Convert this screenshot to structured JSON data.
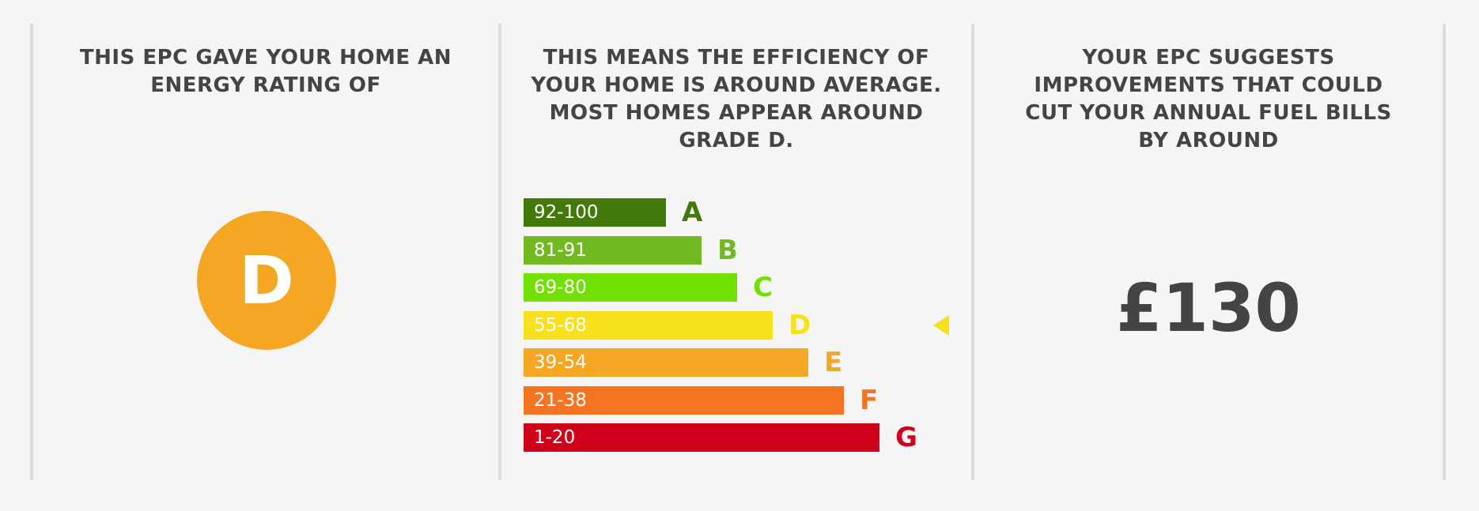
{
  "rating_panel": {
    "heading": "THIS EPC GAVE YOUR HOME AN ENERGY RATING OF",
    "rating": "D",
    "rating_color": "#f5a623"
  },
  "efficiency_panel": {
    "heading": "THIS MEANS THE EFFICIENCY OF YOUR HOME IS AROUND AVERAGE. MOST HOMES APPEAR AROUND GRADE D.",
    "current_band": "D",
    "bands": [
      {
        "range": "92-100",
        "letter": "A",
        "color": "#43780b"
      },
      {
        "range": "81-91",
        "letter": "B",
        "color": "#72b823"
      },
      {
        "range": "69-80",
        "letter": "C",
        "color": "#72e000"
      },
      {
        "range": "55-68",
        "letter": "D",
        "color": "#f7e01c"
      },
      {
        "range": "39-54",
        "letter": "E",
        "color": "#f5a623"
      },
      {
        "range": "21-38",
        "letter": "F",
        "color": "#f47421"
      },
      {
        "range": "1-20",
        "letter": "G",
        "color": "#d0021b"
      }
    ],
    "pointer_icon": "triangle-left-icon"
  },
  "savings_panel": {
    "heading": "YOUR EPC SUGGESTS IMPROVEMENTS THAT COULD CUT YOUR ANNUAL FUEL BILLS BY AROUND",
    "amount": "£130"
  }
}
